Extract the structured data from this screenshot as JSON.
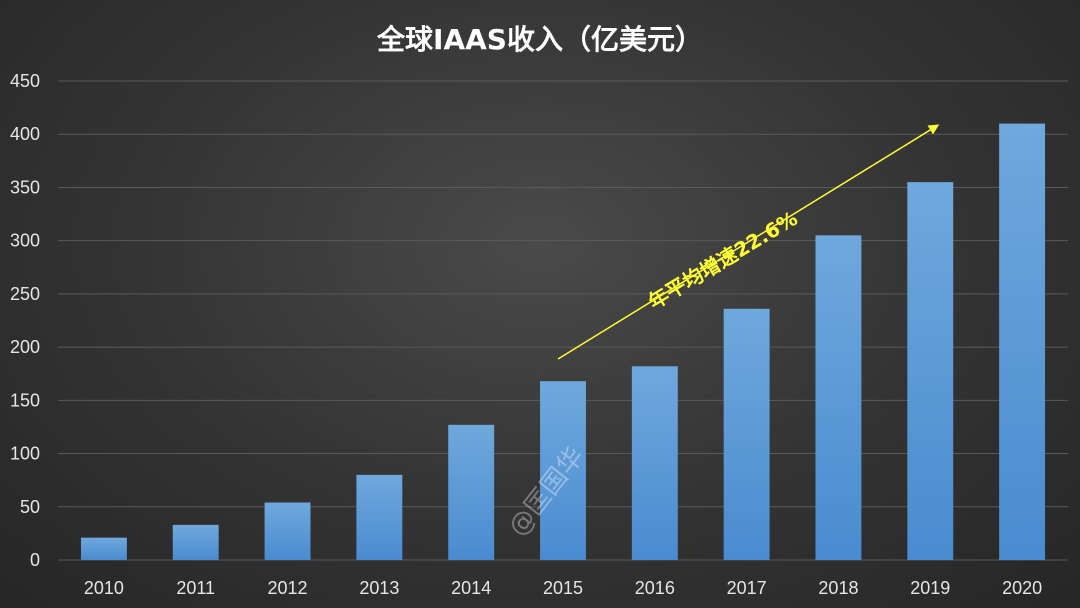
{
  "chart_data": {
    "type": "bar",
    "title": "全球IAAS收入（亿美元）",
    "categories": [
      "2010",
      "2011",
      "2012",
      "2013",
      "2014",
      "2015",
      "2016",
      "2017",
      "2018",
      "2019",
      "2020"
    ],
    "values": [
      21,
      33,
      54,
      80,
      127,
      168,
      182,
      236,
      305,
      355,
      410
    ],
    "ylim": [
      0,
      450
    ],
    "yticks": [
      0,
      50,
      100,
      150,
      200,
      250,
      300,
      350,
      400,
      450
    ],
    "grid": true,
    "bar_color": "#5b9bd5",
    "annotations": [
      {
        "text": "年平均增速22.6%",
        "color": "#ffff33",
        "arrow_from_year": "2015",
        "arrow_to_year": "2019"
      }
    ]
  },
  "watermark": "@匡国华"
}
